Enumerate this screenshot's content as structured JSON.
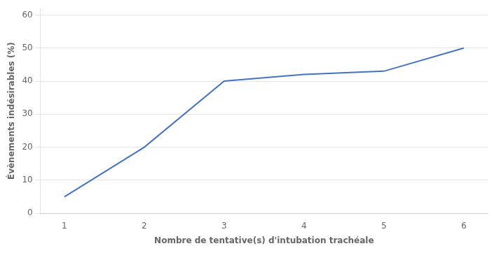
{
  "chart_data": {
    "type": "line",
    "x": [
      1,
      2,
      3,
      4,
      5,
      6
    ],
    "values": [
      5,
      20,
      40,
      42,
      43,
      50
    ],
    "color": "#4472C4",
    "xlabel": "Nombre de tentative(s) d'intubation trachéale",
    "ylabel": "Évènements indésirables (%)",
    "xlim": [
      0.7,
      6.3
    ],
    "ylim": [
      0,
      62
    ],
    "xticks": [
      1,
      2,
      3,
      4,
      5,
      6
    ],
    "yticks": [
      0,
      10,
      20,
      30,
      40,
      50,
      60
    ],
    "grid": "y"
  }
}
